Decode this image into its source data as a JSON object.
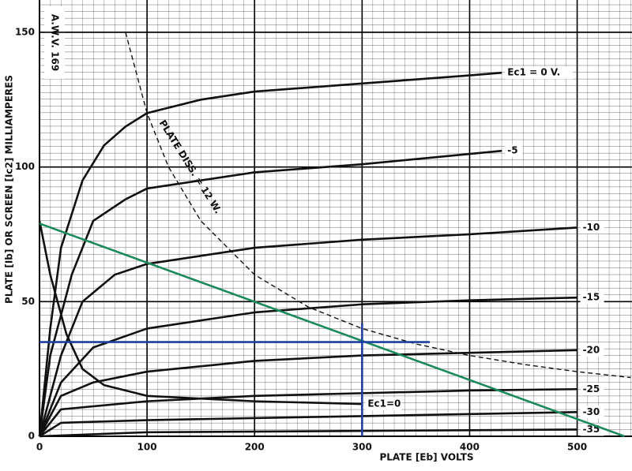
{
  "chart_data": {
    "type": "line",
    "title": "A.W.V. 169",
    "x_label": "PLATE [Eb] VOLTS",
    "y_label": "PLATE [Ib] OR SCREEN [Ic2] MILLIAMPERES",
    "xlim": [
      0,
      551
    ],
    "ylim": [
      0,
      162
    ],
    "xticks": [
      0,
      100,
      200,
      300,
      400,
      500
    ],
    "yticks": [
      0,
      50,
      100,
      150
    ],
    "grid": true,
    "annotations": [
      {
        "text": "PLATE DISS. = 12 W.",
        "x": 140,
        "y": 100
      }
    ],
    "series": [
      {
        "name": "Ec1 = 0 V.",
        "color": "#111111",
        "x": [
          0,
          10,
          20,
          40,
          60,
          80,
          100,
          150,
          200,
          300,
          400,
          430
        ],
        "values": [
          0,
          40,
          70,
          95,
          108,
          115,
          120,
          125,
          128,
          131,
          134,
          135
        ]
      },
      {
        "name": "-5",
        "color": "#111111",
        "x": [
          0,
          10,
          30,
          50,
          80,
          100,
          200,
          300,
          430
        ],
        "values": [
          0,
          30,
          60,
          80,
          88,
          92,
          98,
          101,
          106
        ]
      },
      {
        "name": "-10",
        "color": "#111111",
        "x": [
          0,
          20,
          40,
          70,
          100,
          200,
          300,
          400,
          500
        ],
        "values": [
          0,
          30,
          50,
          60,
          64,
          70,
          73,
          75,
          77.5
        ]
      },
      {
        "name": "-15",
        "color": "#111111",
        "x": [
          0,
          20,
          50,
          100,
          200,
          300,
          400,
          500
        ],
        "values": [
          0,
          20,
          33,
          40,
          46,
          49,
          50.5,
          51.5
        ]
      },
      {
        "name": "-20",
        "color": "#111111",
        "x": [
          0,
          20,
          50,
          100,
          200,
          300,
          400,
          500
        ],
        "values": [
          0,
          15,
          20,
          24,
          28,
          30,
          31,
          32
        ]
      },
      {
        "name": "-25",
        "color": "#111111",
        "x": [
          0,
          20,
          100,
          200,
          300,
          400,
          500
        ],
        "values": [
          0,
          10,
          13,
          15,
          16,
          17,
          17.5
        ]
      },
      {
        "name": "-30",
        "color": "#111111",
        "x": [
          0,
          20,
          100,
          300,
          500
        ],
        "values": [
          0,
          5,
          6,
          7.5,
          9
        ]
      },
      {
        "name": "-35",
        "color": "#111111",
        "x": [
          0,
          100,
          300,
          500
        ],
        "values": [
          0,
          1.5,
          2,
          2.5
        ]
      },
      {
        "name": "Ec1=0",
        "color": "#111111",
        "x": [
          0,
          10,
          25,
          40,
          60,
          100,
          200,
          300
        ],
        "values": [
          80,
          60,
          38,
          25,
          19,
          15,
          13,
          12
        ]
      },
      {
        "color": "#111111",
        "dashed": true,
        "x": [
          80,
          100,
          120,
          150,
          200,
          250,
          300,
          350,
          400,
          450,
          500,
          550
        ],
        "values": [
          150,
          120,
          100,
          80,
          60,
          48,
          40,
          34.3,
          30,
          26.7,
          24,
          21.8
        ]
      },
      {
        "color": "#1a8a5a",
        "x": [
          0,
          544
        ],
        "values": [
          79,
          0
        ]
      },
      {
        "color": "#1f3fa0",
        "x": [
          0,
          363
        ],
        "values": [
          35,
          35
        ]
      },
      {
        "color": "#1f3fa0",
        "x": [
          300,
          300
        ],
        "values": [
          0,
          42
        ]
      }
    ]
  }
}
